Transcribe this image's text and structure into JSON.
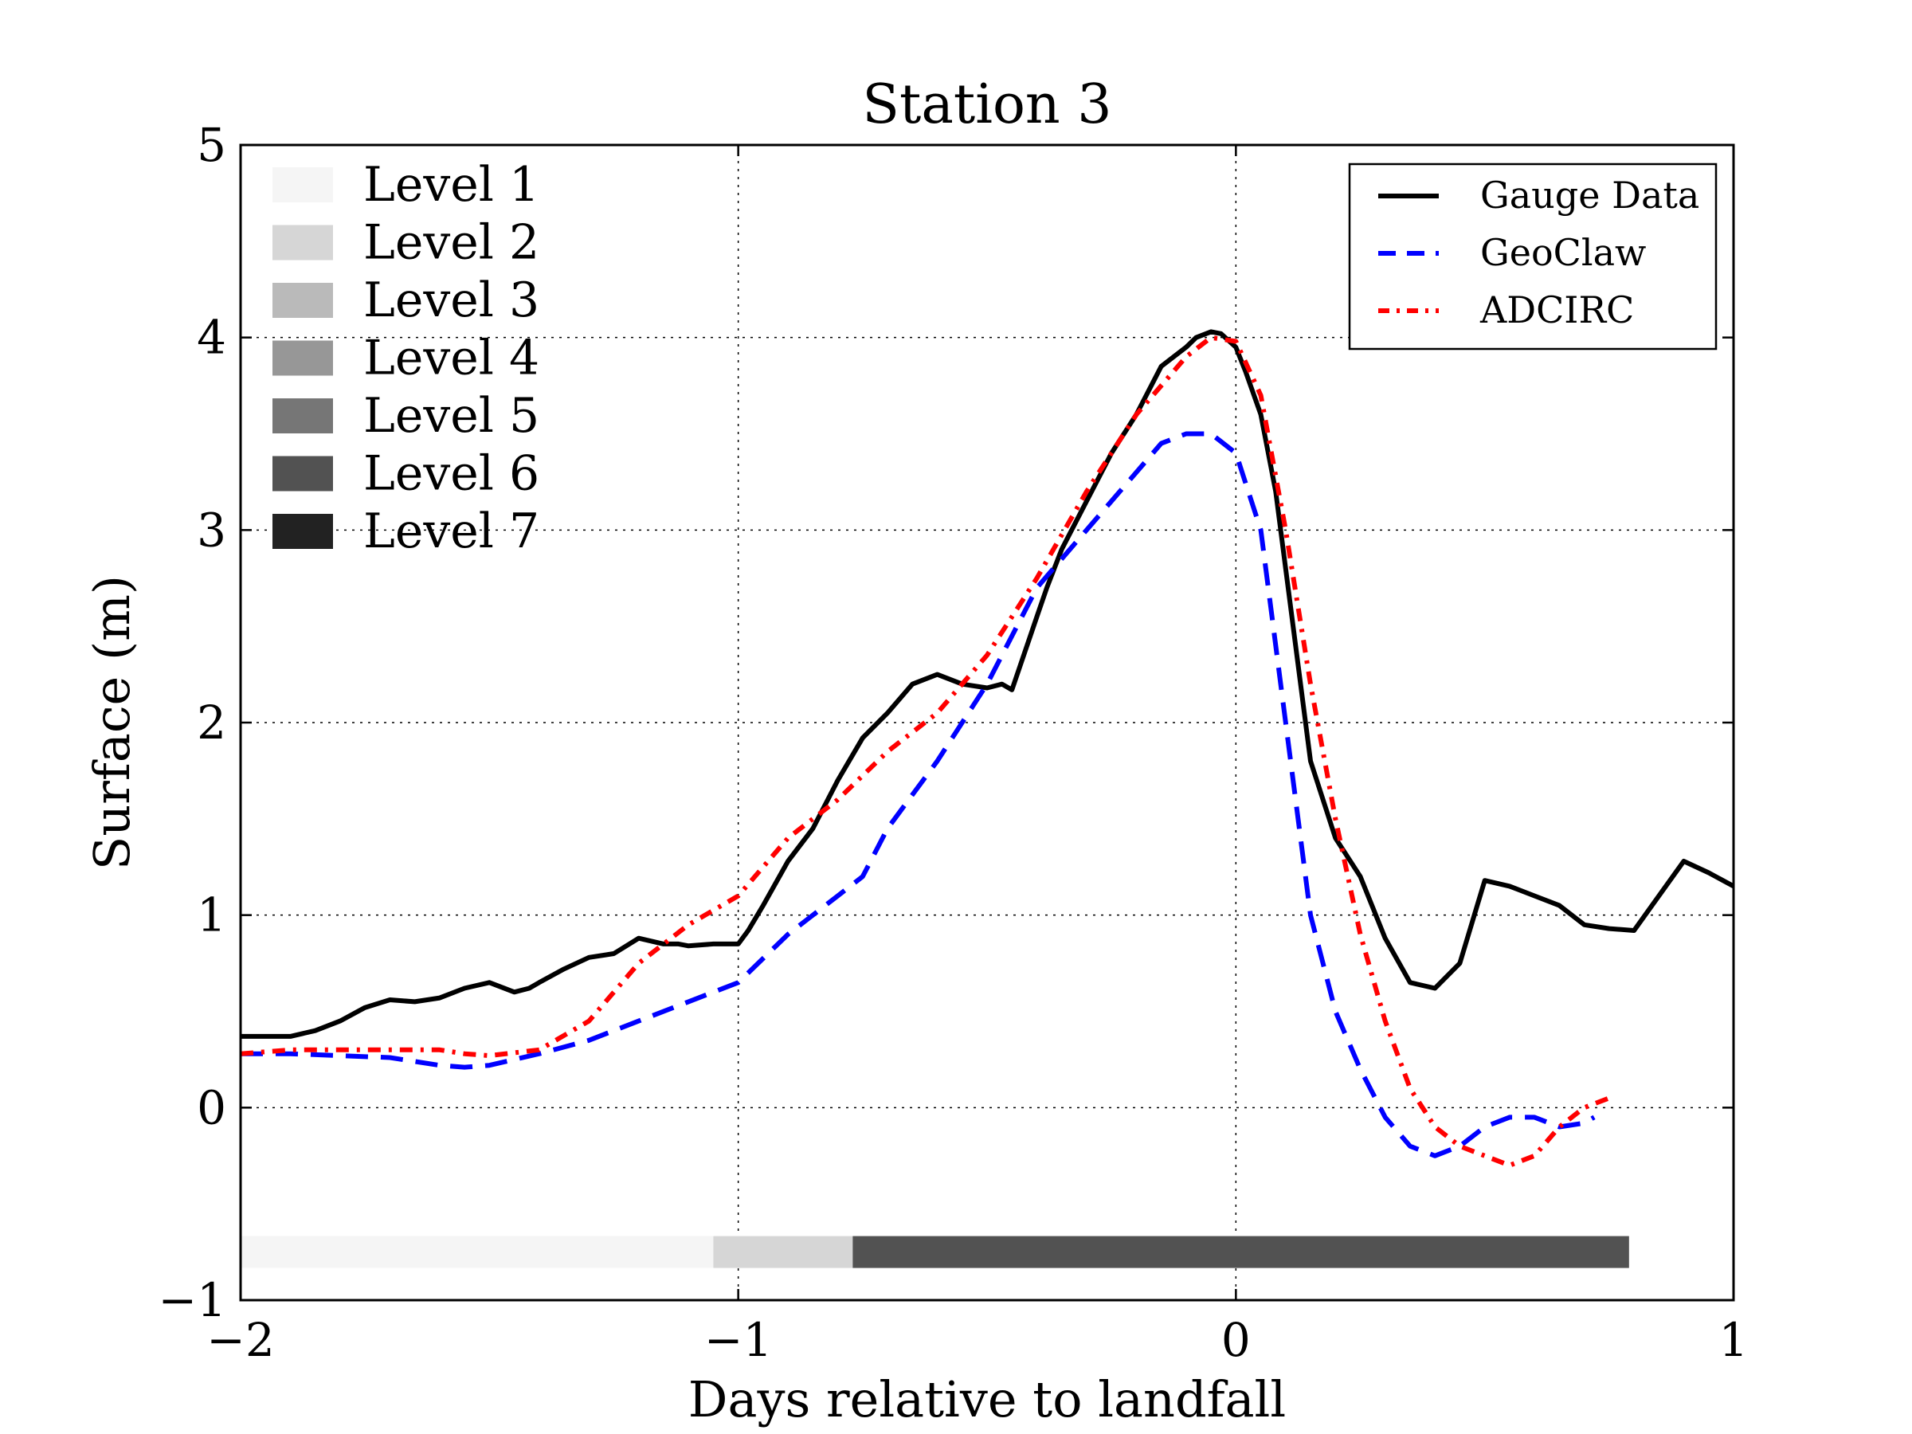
{
  "chart_data": {
    "type": "line",
    "title": "Station 3",
    "xlabel": "Days relative to landfall",
    "ylabel": "Surface (m)",
    "xlim": [
      -2,
      1
    ],
    "ylim": [
      -1,
      5
    ],
    "xticks": [
      -2,
      -1,
      0,
      1
    ],
    "xtick_labels": [
      "−2",
      "−1",
      "0",
      "1"
    ],
    "yticks": [
      -1,
      0,
      1,
      2,
      3,
      4,
      5
    ],
    "ytick_labels": [
      "−1",
      "0",
      "1",
      "2",
      "3",
      "4",
      "5"
    ],
    "grid": true,
    "legend_position": "top-right",
    "series": [
      {
        "name": "Gauge Data",
        "color": "#000000",
        "style": "solid",
        "x": [
          -2.0,
          -1.95,
          -1.9,
          -1.85,
          -1.8,
          -1.75,
          -1.7,
          -1.65,
          -1.6,
          -1.55,
          -1.5,
          -1.45,
          -1.42,
          -1.4,
          -1.35,
          -1.3,
          -1.25,
          -1.2,
          -1.15,
          -1.12,
          -1.1,
          -1.05,
          -1.0,
          -0.98,
          -0.95,
          -0.9,
          -0.85,
          -0.8,
          -0.75,
          -0.7,
          -0.65,
          -0.6,
          -0.55,
          -0.5,
          -0.47,
          -0.45,
          -0.4,
          -0.38,
          -0.35,
          -0.3,
          -0.25,
          -0.2,
          -0.15,
          -0.1,
          -0.08,
          -0.05,
          -0.03,
          0.0,
          0.02,
          0.05,
          0.08,
          0.1,
          0.15,
          0.2,
          0.25,
          0.3,
          0.35,
          0.4,
          0.45,
          0.5,
          0.55,
          0.6,
          0.65,
          0.7,
          0.75,
          0.8,
          0.85,
          0.9,
          0.95,
          1.0
        ],
        "values": [
          0.37,
          0.37,
          0.37,
          0.4,
          0.45,
          0.52,
          0.56,
          0.55,
          0.57,
          0.62,
          0.65,
          0.6,
          0.62,
          0.65,
          0.72,
          0.78,
          0.8,
          0.88,
          0.85,
          0.85,
          0.84,
          0.85,
          0.85,
          0.92,
          1.05,
          1.28,
          1.45,
          1.7,
          1.92,
          2.05,
          2.2,
          2.25,
          2.2,
          2.18,
          2.2,
          2.17,
          2.55,
          2.7,
          2.9,
          3.15,
          3.4,
          3.6,
          3.85,
          3.95,
          4.0,
          4.03,
          4.02,
          3.95,
          3.82,
          3.6,
          3.2,
          2.8,
          1.8,
          1.4,
          1.2,
          0.88,
          0.65,
          0.62,
          0.75,
          1.18,
          1.15,
          1.1,
          1.05,
          0.95,
          0.93,
          0.92,
          1.1,
          1.28,
          1.22,
          1.15
        ]
      },
      {
        "name": "GeoClaw",
        "color": "#0000ff",
        "style": "dashed",
        "x": [
          -2.0,
          -1.9,
          -1.8,
          -1.7,
          -1.6,
          -1.55,
          -1.5,
          -1.4,
          -1.3,
          -1.2,
          -1.1,
          -1.0,
          -0.9,
          -0.8,
          -0.75,
          -0.7,
          -0.6,
          -0.5,
          -0.4,
          -0.3,
          -0.2,
          -0.15,
          -0.1,
          -0.05,
          0.0,
          0.05,
          0.1,
          0.15,
          0.2,
          0.25,
          0.3,
          0.35,
          0.4,
          0.45,
          0.5,
          0.55,
          0.6,
          0.65,
          0.7,
          0.72
        ],
        "values": [
          0.28,
          0.28,
          0.27,
          0.26,
          0.22,
          0.21,
          0.22,
          0.28,
          0.35,
          0.45,
          0.55,
          0.65,
          0.9,
          1.1,
          1.2,
          1.45,
          1.8,
          2.2,
          2.7,
          3.0,
          3.3,
          3.45,
          3.5,
          3.5,
          3.4,
          3.0,
          2.0,
          1.0,
          0.5,
          0.2,
          -0.05,
          -0.2,
          -0.25,
          -0.2,
          -0.1,
          -0.05,
          -0.05,
          -0.1,
          -0.08,
          -0.05
        ]
      },
      {
        "name": "ADCIRC",
        "color": "#ff0000",
        "style": "dashdot",
        "x": [
          -2.0,
          -1.9,
          -1.8,
          -1.7,
          -1.6,
          -1.55,
          -1.5,
          -1.4,
          -1.3,
          -1.2,
          -1.1,
          -1.0,
          -0.9,
          -0.8,
          -0.7,
          -0.6,
          -0.5,
          -0.4,
          -0.3,
          -0.2,
          -0.1,
          -0.05,
          0.0,
          0.05,
          0.1,
          0.15,
          0.2,
          0.25,
          0.3,
          0.35,
          0.4,
          0.45,
          0.5,
          0.55,
          0.6,
          0.65,
          0.7,
          0.75
        ],
        "values": [
          0.28,
          0.3,
          0.3,
          0.3,
          0.3,
          0.28,
          0.27,
          0.3,
          0.45,
          0.75,
          0.95,
          1.1,
          1.4,
          1.6,
          1.85,
          2.05,
          2.35,
          2.75,
          3.2,
          3.6,
          3.9,
          4.0,
          3.98,
          3.7,
          3.0,
          2.2,
          1.5,
          0.9,
          0.45,
          0.1,
          -0.1,
          -0.2,
          -0.25,
          -0.3,
          -0.25,
          -0.1,
          0.0,
          0.05
        ]
      }
    ],
    "level_legend": [
      {
        "label": "Level 1",
        "color": "#f5f5f5"
      },
      {
        "label": "Level 2",
        "color": "#d6d6d6"
      },
      {
        "label": "Level 3",
        "color": "#bababa"
      },
      {
        "label": "Level 4",
        "color": "#979797"
      },
      {
        "label": "Level 5",
        "color": "#767676"
      },
      {
        "label": "Level 6",
        "color": "#525252"
      },
      {
        "label": "Level 7",
        "color": "#222222"
      }
    ],
    "level_bar": {
      "y": -0.75,
      "segments": [
        {
          "level": 1,
          "start": -2.0,
          "end": -1.05
        },
        {
          "level": 2,
          "start": -1.05,
          "end": -0.77
        },
        {
          "level": 6,
          "start": -0.77,
          "end": 0.79
        }
      ]
    }
  }
}
